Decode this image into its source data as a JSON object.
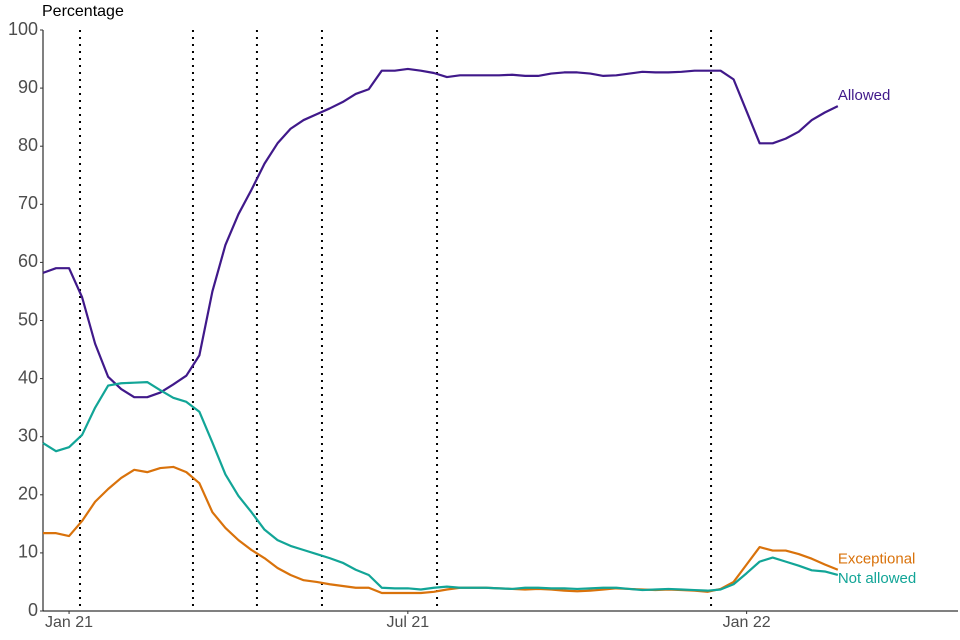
{
  "chart_data": {
    "type": "line",
    "y_label": "Percentage",
    "categories": [
      null,
      null,
      "Jan 21",
      null,
      null,
      null,
      null,
      null,
      null,
      null,
      null,
      null,
      null,
      null,
      null,
      null,
      null,
      null,
      null,
      null,
      null,
      null,
      null,
      null,
      null,
      null,
      null,
      null,
      "Jul 21",
      null,
      null,
      null,
      null,
      null,
      null,
      null,
      null,
      null,
      null,
      null,
      null,
      null,
      null,
      null,
      null,
      null,
      null,
      null,
      null,
      null,
      null,
      null,
      null,
      null,
      "Jan 22",
      null,
      null,
      null,
      null,
      null,
      null,
      null
    ],
    "series": [
      {
        "name": "Allowed",
        "color": "#40198a",
        "values": [
          58.2,
          59,
          59,
          54,
          46,
          40.3,
          38.2,
          36.8,
          36.8,
          37.6,
          39,
          40.5,
          44,
          55,
          63,
          68.3,
          72.5,
          77,
          80.5,
          83,
          84.5,
          85.5,
          86.5,
          87.6,
          89,
          89.8,
          93,
          93,
          93.3,
          93,
          92.6,
          91.9,
          92.2,
          92.2,
          92.2,
          92.2,
          92.3,
          92.1,
          92.1,
          92.5,
          92.7,
          92.7,
          92.5,
          92.1,
          92.2,
          92.5,
          92.8,
          92.7,
          92.7,
          92.8,
          93,
          93,
          93,
          91.5,
          86,
          80.5,
          80.5,
          81.3,
          82.5,
          84.5,
          85.8,
          86.9
        ]
      },
      {
        "name": "Exceptional",
        "color": "#d9720b",
        "values": [
          13.4,
          13.4,
          12.9,
          15.5,
          18.8,
          21,
          22.9,
          24.3,
          23.9,
          24.6,
          24.8,
          23.9,
          22,
          17,
          14.3,
          12.2,
          10.5,
          9.1,
          7.4,
          6.2,
          5.3,
          5,
          4.6,
          4.3,
          4,
          4,
          3.1,
          3.1,
          3.1,
          3.1,
          3.3,
          3.7,
          4,
          4,
          4,
          3.9,
          3.8,
          3.7,
          3.8,
          3.7,
          3.5,
          3.4,
          3.5,
          3.7,
          3.9,
          3.8,
          3.7,
          3.6,
          3.7,
          3.6,
          3.5,
          3.3,
          3.8,
          5,
          8,
          11,
          10.4,
          10.4,
          9.8,
          9,
          8,
          7.1
        ]
      },
      {
        "name": "Not allowed",
        "color": "#12a597",
        "values": [
          28.9,
          27.5,
          28.2,
          30.3,
          35,
          38.8,
          39.2,
          39.3,
          39.4,
          38,
          36.7,
          36,
          34.3,
          29,
          23.5,
          19.8,
          17,
          14,
          12.2,
          11.2,
          10.5,
          9.8,
          9.1,
          8.3,
          7.1,
          6.2,
          4,
          3.9,
          3.9,
          3.7,
          4,
          4.2,
          4,
          4,
          4,
          3.9,
          3.8,
          4,
          4,
          3.9,
          3.9,
          3.8,
          3.9,
          4,
          4,
          3.8,
          3.6,
          3.7,
          3.8,
          3.7,
          3.6,
          3.5,
          3.7,
          4.6,
          6.5,
          8.5,
          9.2,
          8.5,
          7.8,
          7,
          6.8,
          6.2
        ]
      }
    ],
    "reference_lines": [
      2.84,
      11.51,
      16.42,
      21.41,
      30.24,
      51.27
    ],
    "ylim": [
      0,
      100
    ],
    "yticks": [
      0,
      10,
      20,
      30,
      40,
      50,
      60,
      70,
      80,
      90,
      100
    ],
    "grid": false
  }
}
